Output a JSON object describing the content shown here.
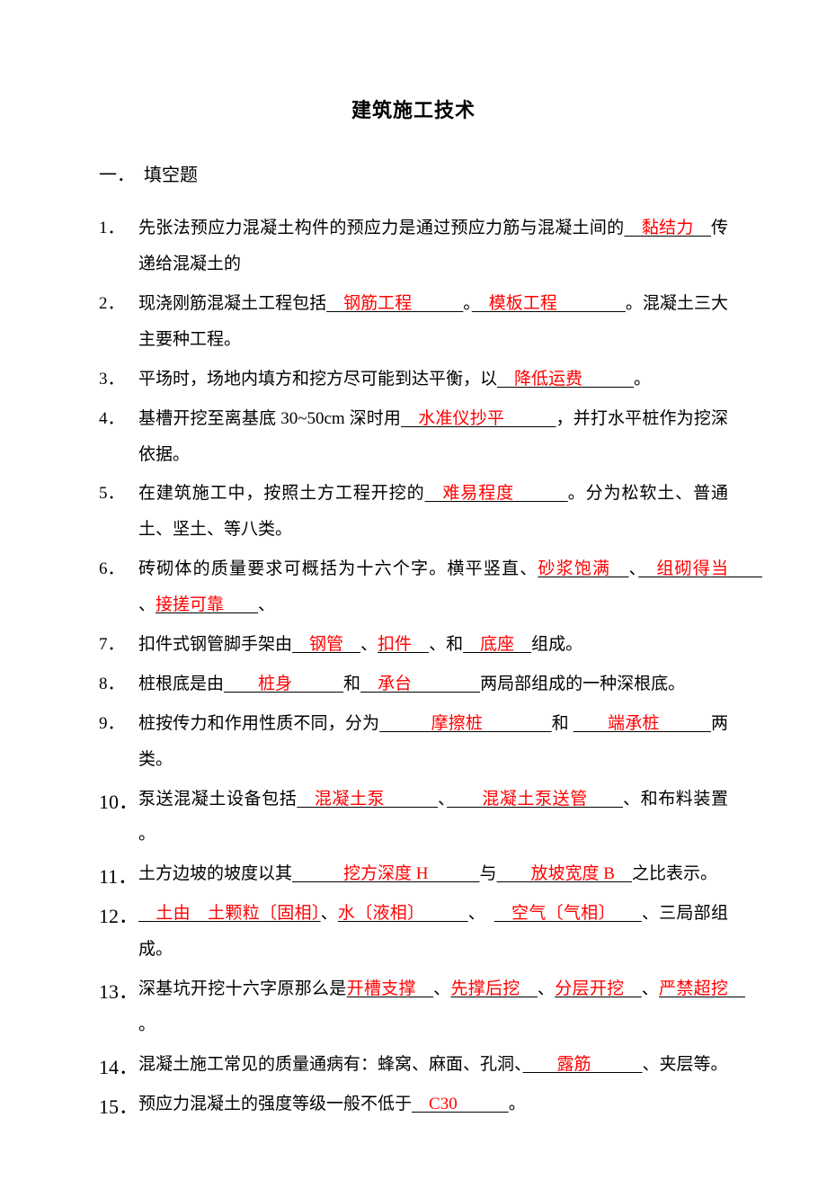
{
  "title": "建筑施工技术",
  "section_heading": "一．　填空题",
  "answer_color": "#ff0000",
  "text_color": "#000000",
  "font_size_body": 19,
  "font_size_title": 22,
  "questions": [
    {
      "num": "1．",
      "pre": "先张法预应力混凝土构件的预应力是通过预应力筋与混凝土间的",
      "ans1": "　黏结力　",
      "post": "传递给混凝土的"
    },
    {
      "num": "2．",
      "pre": "现浇刚筋混凝土工程包括",
      "ans1": "　钢筋工程　　　",
      "mid1": "。",
      "ans2": "　模板工程　　　　",
      "post": "。混凝土三大主要种工程。"
    },
    {
      "num": "3．",
      "pre": "平场时，场地内填方和挖方尽可能到达平衡，以",
      "ans1": "　降低运费　　　",
      "post": "。"
    },
    {
      "num": "4．",
      "pre": "基槽开挖至离基底 30~50cm 深时用",
      "ans1": "　水准仪抄平　　　",
      "post": "，并打水平桩作为挖深依据。"
    },
    {
      "num": "5．",
      "pre": "在建筑施工中，按照土方工程开挖的",
      "ans1": "　难易程度　　　",
      "post": "。分为松软土、普通土、坚土、等八类。"
    },
    {
      "num": "6．",
      "pre": "砖砌体的质量要求可概括为十六个字。横平竖直、",
      "ans1": "砂浆饱满　",
      "mid1": "、",
      "ans2": "　组砌得当　　",
      "mid2": "、",
      "ans3": "接搓可靠　　",
      "post": "、"
    },
    {
      "num": "7．",
      "pre": "扣件式钢管脚手架由",
      "ans1": "　钢管　",
      "mid1": "、",
      "ans2": "扣件　",
      "mid2": "、和",
      "ans3": "　底座　",
      "post": "组成。"
    },
    {
      "num": "8．",
      "pre": "桩根底是由",
      "ans1": "　　桩身　　　",
      "mid1": "和",
      "ans2": "　承台　　　　",
      "post": "两局部组成的一种深根底。"
    },
    {
      "num": "9．",
      "pre": "桩按传力和作用性质不同，分为",
      "ans1": "　　　摩擦桩　　　　",
      "mid1": "和 ",
      "ans2": "　　端承桩　　　",
      "post": "两类。"
    },
    {
      "num": "10．",
      "pre": "泵送混凝土设备包括",
      "ans1": "　混凝土泵　　　",
      "mid1": "、",
      "ans2": "　　混凝土泵送管　　",
      "post": "、和布料装置 。"
    },
    {
      "num": "11．",
      "pre": "土方边坡的坡度以其",
      "ans1": "　　　挖方深度 H　　　",
      "mid1": "与",
      "ans2": "　　放坡宽度 B　",
      "post": "之比表示。"
    },
    {
      "num": "12．",
      "ans0": "　土由　土颗粒〔固相〕",
      "mid0": "、",
      "ans1": "水〔液相〕　　　",
      "mid1": "、　",
      "ans2": "　空气〔气相〕　　",
      "post": "、三局部组成。"
    },
    {
      "num": "13．",
      "pre": "深基坑开挖十六字原那么是",
      "ans1": "开槽支撑　",
      "mid1": "、",
      "ans2": "先撑后挖　",
      "mid2": "、",
      "ans3": "分层开挖　",
      "mid3": "、",
      "ans4": "严禁超挖　",
      "post": "。"
    },
    {
      "num": "14．",
      "pre": "混凝土施工常见的质量通病有：蜂窝、麻面、孔洞、",
      "ans1": "　　露筋　　　",
      "post": "、夹层等。"
    },
    {
      "num": "15．",
      "pre": "预应力混凝土的强度等级一般不低于",
      "ans1": "　C30　　　",
      "post": "。"
    }
  ]
}
